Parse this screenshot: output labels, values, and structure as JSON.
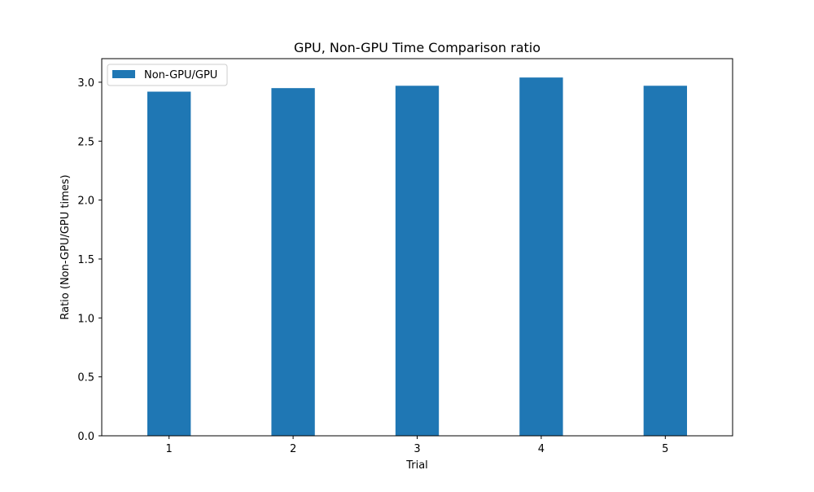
{
  "chart_data": {
    "type": "bar",
    "title": "GPU, Non-GPU Time Comparison ratio",
    "xlabel": "Trial",
    "ylabel": "Ratio (Non-GPU/GPU times)",
    "categories": [
      "1",
      "2",
      "3",
      "4",
      "5"
    ],
    "series": [
      {
        "name": "Non-GPU/GPU",
        "values": [
          2.92,
          2.95,
          2.97,
          3.04,
          2.97
        ],
        "color": "#1f77b4"
      }
    ],
    "ylim": [
      0,
      3.2
    ],
    "yticks": [
      0.0,
      0.5,
      1.0,
      1.5,
      2.0,
      2.5,
      3.0
    ],
    "ytick_labels": [
      "0.0",
      "0.5",
      "1.0",
      "1.5",
      "2.0",
      "2.5",
      "3.0"
    ],
    "grid": false,
    "legend_position": "upper-left"
  }
}
